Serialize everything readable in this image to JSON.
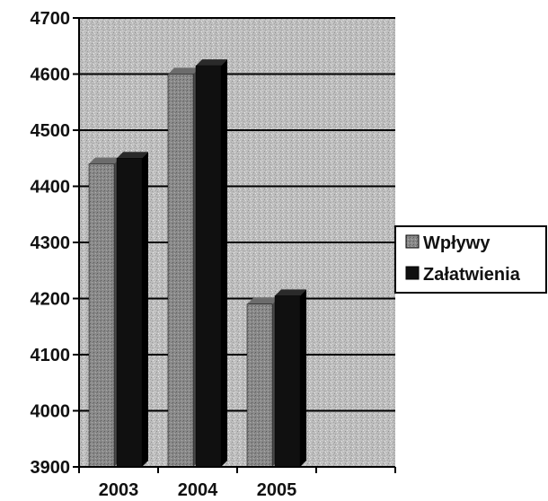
{
  "chart_data": {
    "type": "bar",
    "categories": [
      "2003",
      "2004",
      "2005"
    ],
    "series": [
      {
        "name": "Wpływy",
        "values": [
          4440,
          4600,
          4190
        ],
        "color": "#8a8a8a"
      },
      {
        "name": "Załatwienia",
        "values": [
          4450,
          4615,
          4205
        ],
        "color": "#101010"
      }
    ],
    "y_ticks": [
      "4700",
      "4600",
      "4500",
      "4400",
      "4300",
      "4200",
      "4100",
      "4000",
      "3900"
    ],
    "ylim": [
      3900,
      4700
    ],
    "grid": true,
    "legend_position": "right",
    "plot_background": "#bdbdbd"
  }
}
